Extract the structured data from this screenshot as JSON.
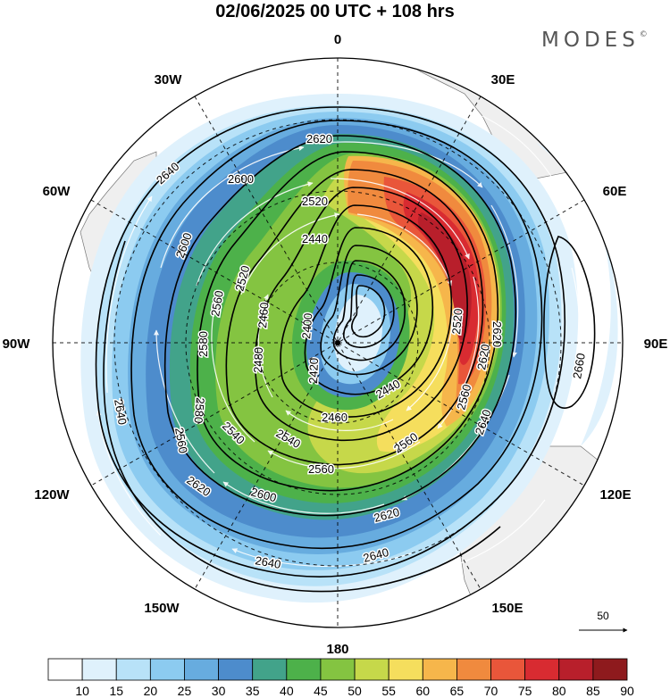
{
  "title": "02/06/2025  00 UTC  + 108 hrs",
  "brand": "MODES",
  "brand_mark": "©",
  "map": {
    "projection": "south polar stereographic",
    "longitude_labels": [
      {
        "text": "0",
        "lon": 0
      },
      {
        "text": "30E",
        "lon": 30
      },
      {
        "text": "60E",
        "lon": 60
      },
      {
        "text": "90E",
        "lon": 90
      },
      {
        "text": "120E",
        "lon": 120
      },
      {
        "text": "150E",
        "lon": 150
      },
      {
        "text": "180",
        "lon": 180
      },
      {
        "text": "150W",
        "lon": 210
      },
      {
        "text": "120W",
        "lon": 240
      },
      {
        "text": "90W",
        "lon": 270
      },
      {
        "text": "60W",
        "lon": 300
      },
      {
        "text": "30W",
        "lon": 330
      }
    ],
    "contour_labels": [
      "2400",
      "2420",
      "2440",
      "2460",
      "2480",
      "2520",
      "2560",
      "2580",
      "2600",
      "2620",
      "2640",
      "2660"
    ],
    "contour_label_instances": [
      "2620",
      "2640",
      "2600",
      "2520",
      "2600",
      "2440",
      "2520",
      "2560",
      "2400",
      "2460",
      "2480",
      "2580",
      "2420",
      "2580",
      "2560",
      "2640",
      "2540",
      "2540",
      "2460",
      "2440",
      "2560",
      "2620",
      "2640",
      "2560",
      "2620",
      "2600",
      "2620",
      "2640",
      "2640",
      "2660",
      "2520",
      "2620",
      "2560"
    ],
    "colors": {
      "land": "#efefef",
      "wind_arrows": "#ffffff",
      "contours": "#000000"
    }
  },
  "vector_reference": {
    "value": "50"
  },
  "colorbar": {
    "ticks": [
      "10",
      "15",
      "20",
      "25",
      "30",
      "35",
      "40",
      "45",
      "50",
      "55",
      "60",
      "65",
      "70",
      "75",
      "80",
      "85",
      "90"
    ],
    "colors": [
      "#ffffff",
      "#dff1fc",
      "#b8e2f8",
      "#8ccbf0",
      "#67acdf",
      "#4d8ccc",
      "#42a38a",
      "#4db14a",
      "#84c441",
      "#c6d84a",
      "#f5de5d",
      "#f6b64b",
      "#f08a3e",
      "#e9563a",
      "#d82b31",
      "#b81f2b",
      "#8e1a1d"
    ]
  }
}
